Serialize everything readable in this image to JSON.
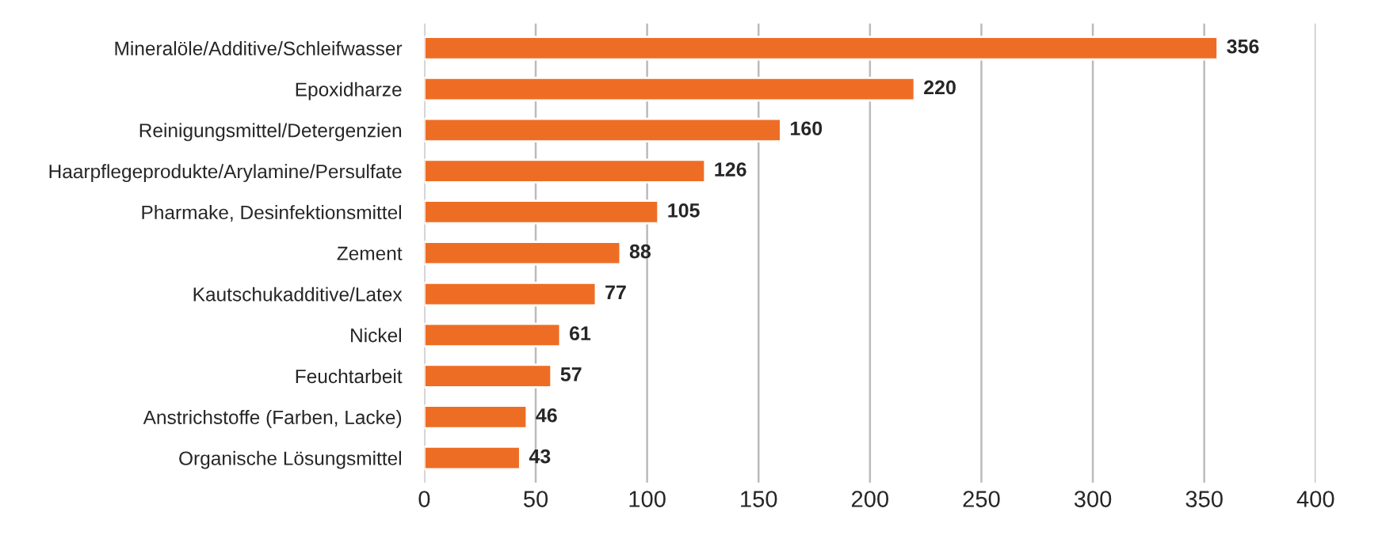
{
  "chart_data": {
    "type": "bar",
    "orientation": "horizontal",
    "categories": [
      "Mineralöle/Additive/Schleifwasser",
      "Epoxidharze",
      "Reinigungsmittel/Detergenzien",
      "Haarpflegeprodukte/Arylamine/Persulfate",
      "Pharmake, Desinfektionsmittel",
      "Zement",
      "Kautschukadditive/Latex",
      "Nickel",
      "Feuchtarbeit",
      "Anstrichstoffe (Farben, Lacke)",
      "Organische Lösungsmittel"
    ],
    "values": [
      356,
      220,
      160,
      126,
      105,
      88,
      77,
      61,
      57,
      46,
      43
    ],
    "color": "#ee6d25",
    "xlim": [
      0,
      400
    ],
    "xticks": [
      0,
      50,
      100,
      150,
      200,
      250,
      300,
      350,
      400
    ],
    "grid": "x",
    "data_labels": true,
    "legend": false
  }
}
